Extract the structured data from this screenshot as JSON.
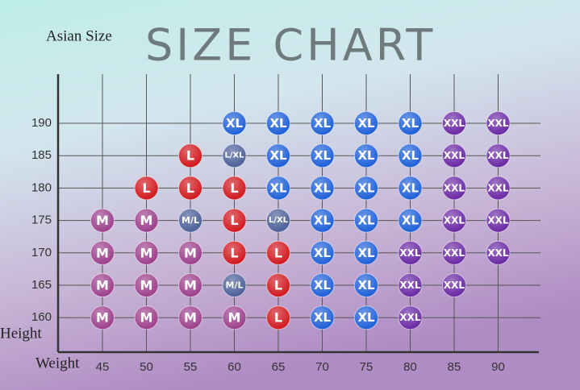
{
  "title": "SIZE CHART",
  "subtitle": "Asian Size",
  "x_label": "Weight",
  "y_label": "Height",
  "weights": [
    45,
    50,
    55,
    60,
    65,
    70,
    75,
    80,
    85,
    90
  ],
  "heights": [
    190,
    185,
    180,
    175,
    170,
    165,
    160
  ],
  "cells": [
    [
      null,
      null,
      null,
      "XL",
      "XL",
      "XL",
      "XL",
      "XL",
      "XXL",
      "XXL"
    ],
    [
      null,
      null,
      "L",
      "L/XL",
      "XL",
      "XL",
      "XL",
      "XL",
      "XXL",
      "XXL"
    ],
    [
      null,
      "L",
      "L",
      "L",
      "XL",
      "XL",
      "XL",
      "XL",
      "XXL",
      "XXL"
    ],
    [
      "M",
      "M",
      "M/L",
      "L",
      "L/XL",
      "XL",
      "XL",
      "XL",
      "XXL",
      "XXL"
    ],
    [
      "M",
      "M",
      "M",
      "L",
      "L",
      "XL",
      "XL",
      "XXL",
      "XXL",
      "XXL"
    ],
    [
      "M",
      "M",
      "M",
      "M/L",
      "L",
      "XL",
      "XL",
      "XXL",
      "XXL",
      null
    ],
    [
      "M",
      "M",
      "M",
      "M",
      "L",
      "XL",
      "XL",
      "XXL",
      null,
      null
    ]
  ]
}
